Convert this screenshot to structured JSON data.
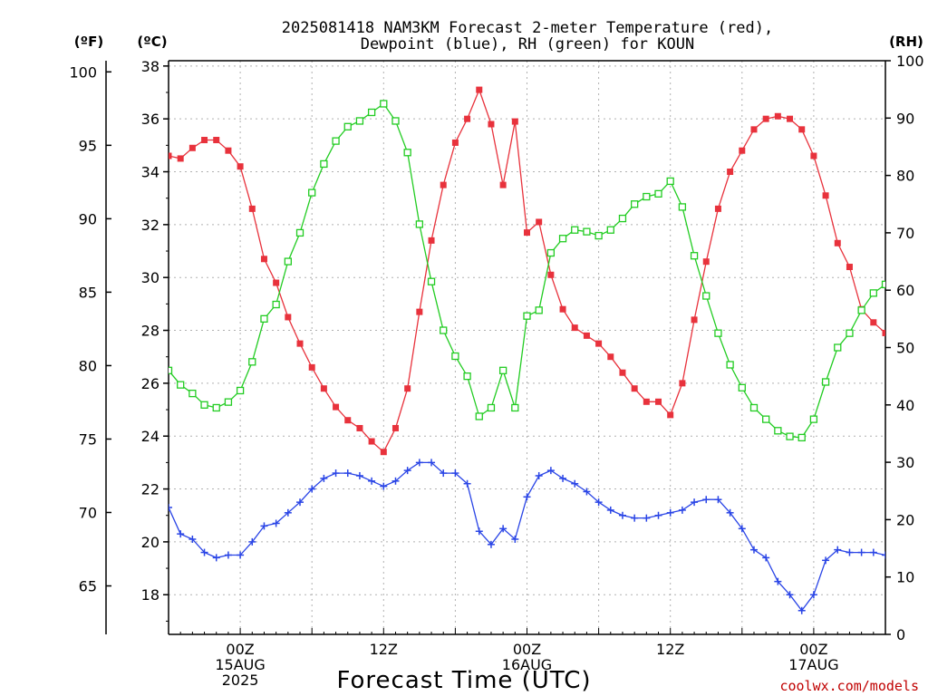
{
  "title": {
    "line1": "2025081418 NAM3KM Forecast 2-meter Temperature (red),",
    "line2": "Dewpoint (blue), RH (green) for KOUN"
  },
  "units": {
    "f": "(ºF)",
    "c": "(ºC)",
    "rh": "(RH)"
  },
  "xaxis_label": "Forecast Time (UTC)",
  "credit": "coolwx.com/models",
  "x_ticks": [
    {
      "hour": 6,
      "l1": "00Z",
      "l2": "15AUG",
      "l3": "2025"
    },
    {
      "hour": 18,
      "l1": "12Z",
      "l2": "",
      "l3": ""
    },
    {
      "hour": 30,
      "l1": "00Z",
      "l2": "16AUG",
      "l3": ""
    },
    {
      "hour": 42,
      "l1": "12Z",
      "l2": "",
      "l3": ""
    },
    {
      "hour": 54,
      "l1": "00Z",
      "l2": "17AUG",
      "l3": ""
    }
  ],
  "chart_data": {
    "type": "line",
    "title": "2025081418 NAM3KM Forecast 2-meter Temperature (red), Dewpoint (blue), RH (green) for KOUN",
    "xlabel": "Forecast Time (UTC)",
    "x_unit": "forecast hour from 2025-08-14 18Z",
    "xlim": [
      0,
      60
    ],
    "y_left_c": {
      "label": "(ºC)",
      "ylim": [
        16.5,
        38.2
      ],
      "ticks": [
        18,
        20,
        22,
        24,
        26,
        28,
        30,
        32,
        34,
        36,
        38
      ]
    },
    "y_left_f": {
      "label": "(ºF)",
      "ticks": [
        65,
        70,
        75,
        80,
        85,
        90,
        95,
        100
      ]
    },
    "y_right_rh": {
      "label": "(RH)",
      "ylim": [
        0,
        100
      ],
      "ticks": [
        0,
        10,
        20,
        30,
        40,
        50,
        60,
        70,
        80,
        90,
        100
      ]
    },
    "grid": true,
    "series": [
      {
        "name": "Temperature",
        "axis": "c",
        "color": "#e8323c",
        "marker": "filled-square",
        "x": [
          0,
          1,
          2,
          3,
          4,
          5,
          6,
          7,
          8,
          9,
          10,
          11,
          12,
          13,
          14,
          15,
          16,
          17,
          18,
          19,
          20,
          21,
          22,
          23,
          24,
          25,
          26,
          27,
          28,
          29,
          30,
          31,
          32,
          33,
          34,
          35,
          36,
          37,
          38,
          39,
          40,
          41,
          42,
          43,
          44,
          45,
          46,
          47,
          48,
          49,
          50,
          51,
          52,
          53,
          54,
          55,
          56,
          57,
          58,
          59,
          60
        ],
        "values": [
          34.6,
          34.5,
          34.9,
          35.2,
          35.2,
          34.8,
          34.2,
          32.6,
          30.7,
          29.8,
          28.5,
          27.5,
          26.6,
          25.8,
          25.1,
          24.6,
          24.3,
          23.8,
          23.4,
          24.3,
          25.8,
          28.7,
          31.4,
          33.5,
          35.1,
          36.0,
          37.1,
          35.8,
          33.5,
          35.9,
          31.7,
          32.1,
          30.1,
          28.8,
          28.1,
          27.8,
          27.5,
          27.0,
          26.4,
          25.8,
          25.3,
          25.3,
          24.8,
          26.0,
          28.4,
          30.6,
          32.6,
          34.0,
          34.8,
          35.6,
          36.0,
          36.1,
          36.0,
          35.6,
          34.6,
          33.1,
          31.3,
          30.4,
          28.8,
          28.3,
          27.9
        ]
      },
      {
        "name": "Dewpoint",
        "axis": "c",
        "color": "#2a45e6",
        "marker": "plus",
        "x": [
          0,
          1,
          2,
          3,
          4,
          5,
          6,
          7,
          8,
          9,
          10,
          11,
          12,
          13,
          14,
          15,
          16,
          17,
          18,
          19,
          20,
          21,
          22,
          23,
          24,
          25,
          26,
          27,
          28,
          29,
          30,
          31,
          32,
          33,
          34,
          35,
          36,
          37,
          38,
          39,
          40,
          41,
          42,
          43,
          44,
          45,
          46,
          47,
          48,
          49,
          50,
          51,
          52,
          53,
          54,
          55,
          56,
          57,
          58,
          59,
          60
        ],
        "values": [
          21.3,
          20.3,
          20.1,
          19.6,
          19.4,
          19.5,
          19.5,
          20.0,
          20.6,
          20.7,
          21.1,
          21.5,
          22.0,
          22.4,
          22.6,
          22.6,
          22.5,
          22.3,
          22.1,
          22.3,
          22.7,
          23.0,
          23.0,
          22.6,
          22.6,
          22.2,
          20.4,
          19.9,
          20.5,
          20.1,
          21.7,
          22.5,
          22.7,
          22.4,
          22.2,
          21.9,
          21.5,
          21.2,
          21.0,
          20.9,
          20.9,
          21.0,
          21.1,
          21.2,
          21.5,
          21.6,
          21.6,
          21.1,
          20.5,
          19.7,
          19.4,
          18.5,
          18.0,
          17.4,
          18.0,
          19.3,
          19.7,
          19.6,
          19.6,
          19.6,
          19.5
        ]
      },
      {
        "name": "RH",
        "axis": "rh",
        "color": "#22cc22",
        "marker": "open-square",
        "x": [
          0,
          1,
          2,
          3,
          4,
          5,
          6,
          7,
          8,
          9,
          10,
          11,
          12,
          13,
          14,
          15,
          16,
          17,
          18,
          19,
          20,
          21,
          22,
          23,
          24,
          25,
          26,
          27,
          28,
          29,
          30,
          31,
          32,
          33,
          34,
          35,
          36,
          37,
          38,
          39,
          40,
          41,
          42,
          43,
          44,
          45,
          46,
          47,
          48,
          49,
          50,
          51,
          52,
          53,
          54,
          55,
          56,
          57,
          58,
          59,
          60
        ],
        "values": [
          46,
          43.5,
          42,
          40,
          39.5,
          40.5,
          42.5,
          47.5,
          55,
          57.5,
          65,
          70,
          77,
          82,
          86,
          88.5,
          89.5,
          91,
          92.5,
          89.5,
          84,
          71.5,
          61.5,
          53,
          48.5,
          45,
          38,
          39.5,
          46,
          39.5,
          55.5,
          56.5,
          66.5,
          69,
          70.5,
          70.2,
          69.5,
          70.5,
          72.5,
          75,
          76.3,
          76.8,
          79,
          74.5,
          66,
          59,
          52.5,
          47,
          43,
          39.5,
          37.5,
          35.5,
          34.5,
          34.3,
          37.5,
          44,
          50,
          52.5,
          56.5,
          59.5,
          61
        ]
      }
    ]
  }
}
